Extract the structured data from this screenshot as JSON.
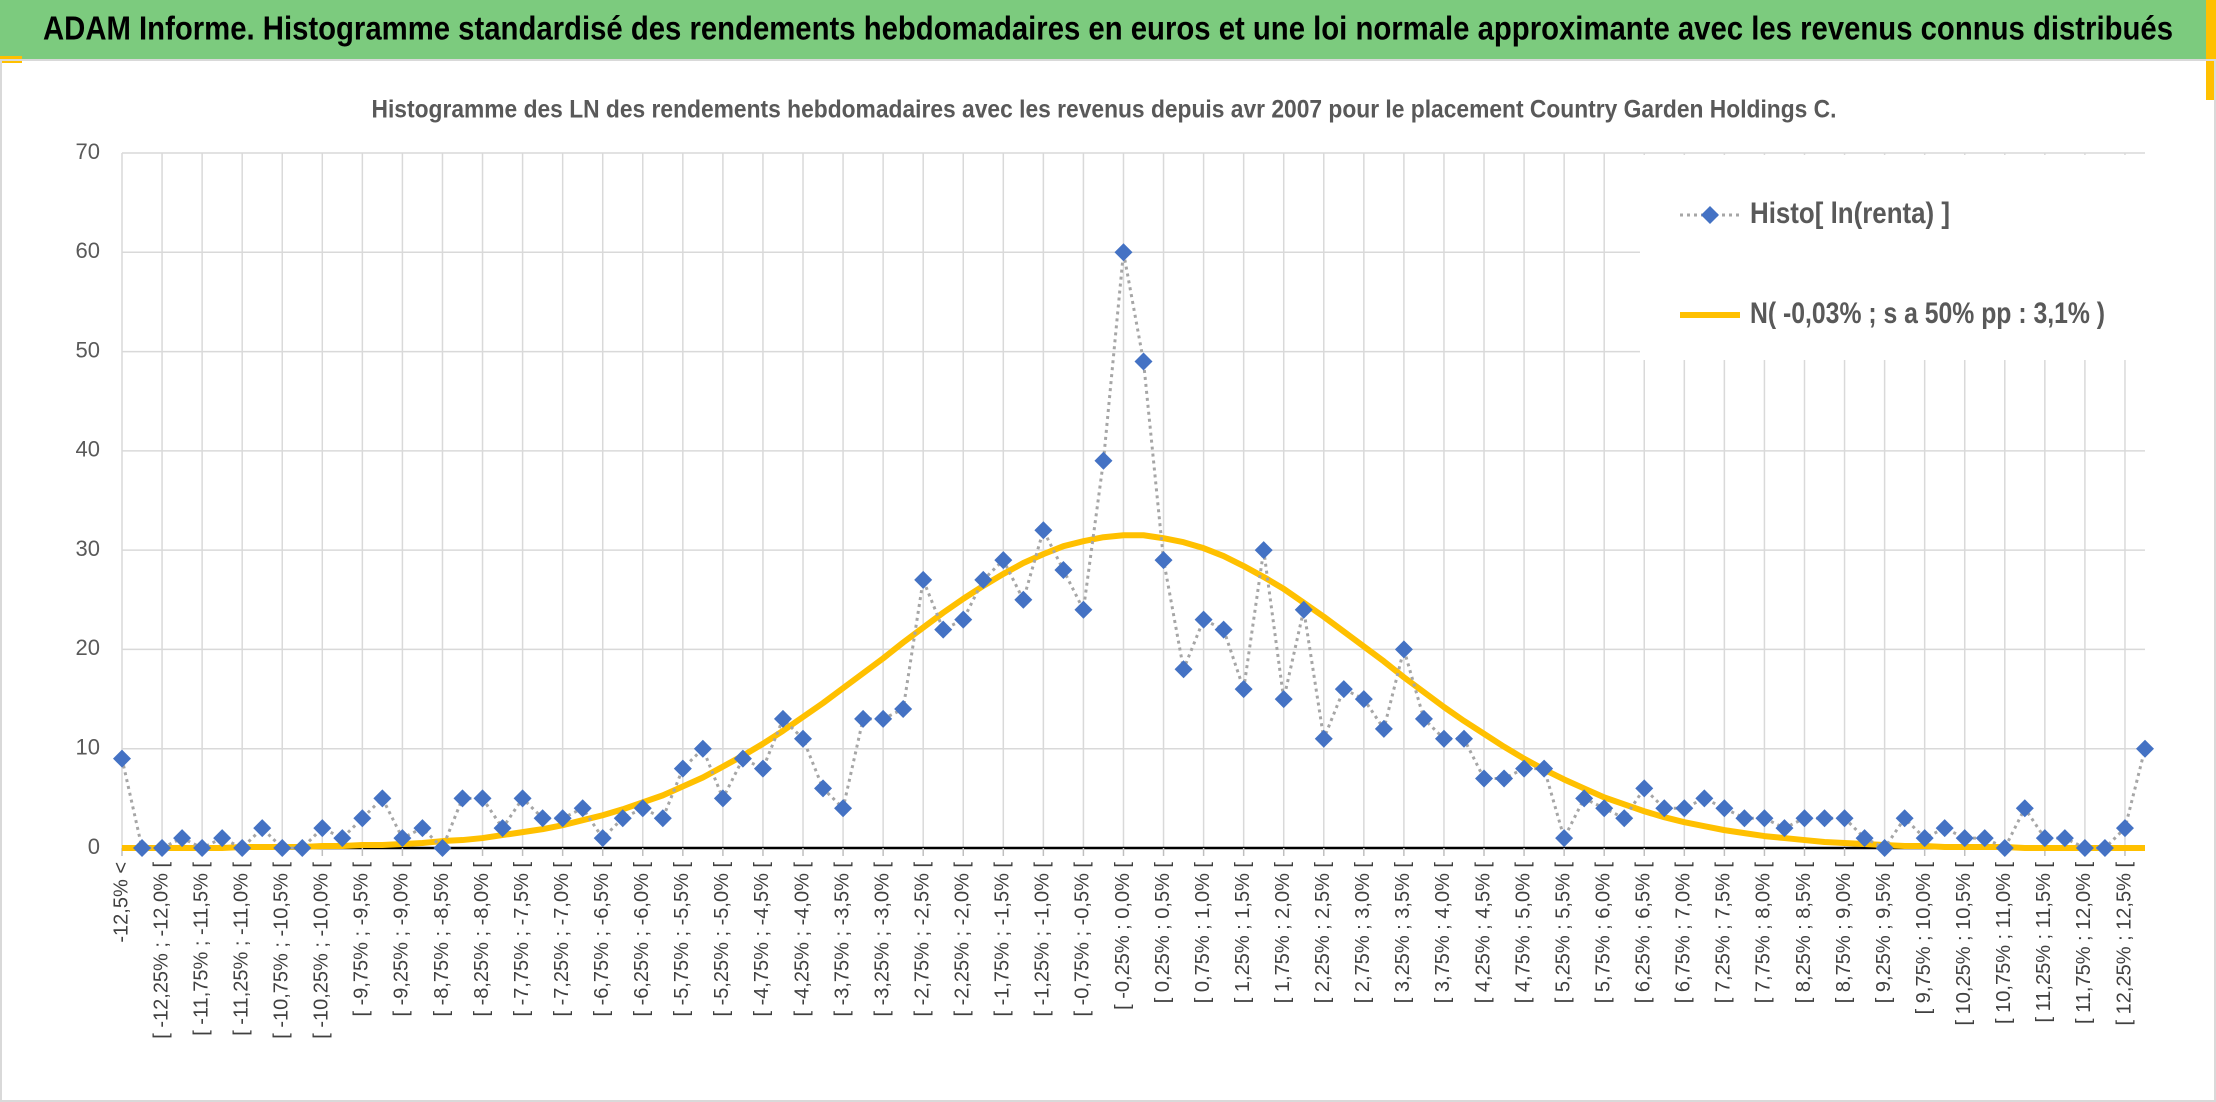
{
  "header": {
    "title": "ADAM Informe. Histogramme standardisé des rendements hebdomadaires en euros et une loi normale approximante avec les revenus connus distribués"
  },
  "chart_data": {
    "type": "line",
    "title": "Histogramme des LN des rendements hebdomadaires avec les revenus depuis avr 2007 pour le placement Country Garden Holdings C.",
    "categories": [
      "-12,5% <",
      null,
      "[ -12,25% ; -12,0% [",
      null,
      "[ -11,75% ; -11,5% [",
      null,
      "[ -11,25% ; -11,0% [",
      null,
      "[ -10,75% ; -10,5% [",
      null,
      "[ -10,25% ; -10,0% [",
      null,
      "[ -9,75% ; -9,5% [",
      null,
      "[ -9,25% ; -9,0% [",
      null,
      "[ -8,75% ; -8,5% [",
      null,
      "[ -8,25% ; -8,0% [",
      null,
      "[ -7,75% ; -7,5% [",
      null,
      "[ -7,25% ; -7,0% [",
      null,
      "[ -6,75% ; -6,5% [",
      null,
      "[ -6,25% ; -6,0% [",
      null,
      "[ -5,75% ; -5,5% [",
      null,
      "[ -5,25% ; -5,0% [",
      null,
      "[ -4,75% ; -4,5% [",
      null,
      "[ -4,25% ; -4,0% [",
      null,
      "[ -3,75% ; -3,5% [",
      null,
      "[ -3,25% ; -3,0% [",
      null,
      "[ -2,75% ; -2,5% [",
      null,
      "[ -2,25% ; -2,0% [",
      null,
      "[ -1,75% ; -1,5% [",
      null,
      "[ -1,25% ; -1,0% [",
      null,
      "[ -0,75% ; -0,5% [",
      null,
      "[ -0,25% ; 0,0% [",
      null,
      "[ 0,25% ; 0,5% [",
      null,
      "[ 0,75% ; 1,0% [",
      null,
      "[ 1,25% ; 1,5% [",
      null,
      "[ 1,75% ; 2,0% [",
      null,
      "[ 2,25% ; 2,5% [",
      null,
      "[ 2,75% ; 3,0% [",
      null,
      "[ 3,25% ; 3,5% [",
      null,
      "[ 3,75% ; 4,0% [",
      null,
      "[ 4,25% ; 4,5% [",
      null,
      "[ 4,75% ; 5,0% [",
      null,
      "[ 5,25% ; 5,5% [",
      null,
      "[ 5,75% ; 6,0% [",
      null,
      "[ 6,25% ; 6,5% [",
      null,
      "[ 6,75% ; 7,0% [",
      null,
      "[ 7,25% ; 7,5% [",
      null,
      "[ 7,75% ; 8,0% [",
      null,
      "[ 8,25% ; 8,5% [",
      null,
      "[ 8,75% ; 9,0% [",
      null,
      "[ 9,25% ; 9,5% [",
      null,
      "[ 9,75% ; 10,0% [",
      null,
      "[ 10,25% ; 10,5% [",
      null,
      "[ 10,75% ; 11,0% [",
      null,
      "[ 11,25% ; 11,5% [",
      null,
      "[ 11,75% ; 12,0% [",
      null,
      "[ 12,25% ; 12,5% [",
      null
    ],
    "series": [
      {
        "name": "Histo[ ln(renta) ]",
        "color": "#4472c4",
        "line_color": "#a6a6a6",
        "marker": "diamond",
        "line_style": "dotted",
        "values": [
          9,
          0,
          0,
          1,
          0,
          1,
          0,
          2,
          0,
          0,
          2,
          1,
          3,
          5,
          1,
          2,
          0,
          5,
          5,
          2,
          5,
          3,
          3,
          4,
          1,
          3,
          4,
          3,
          8,
          10,
          5,
          9,
          8,
          13,
          11,
          6,
          4,
          13,
          13,
          14,
          27,
          22,
          23,
          27,
          29,
          25,
          32,
          28,
          24,
          39,
          60,
          49,
          29,
          18,
          23,
          22,
          16,
          30,
          15,
          24,
          11,
          16,
          15,
          12,
          20,
          13,
          11,
          11,
          7,
          7,
          8,
          8,
          1,
          5,
          4,
          3,
          6,
          4,
          4,
          5,
          4,
          3,
          3,
          2,
          3,
          3,
          3,
          1,
          0,
          3,
          1,
          2,
          1,
          1,
          0,
          4,
          1,
          1,
          0,
          0,
          2,
          10
        ]
      },
      {
        "name": "N( -0,03% ; s a 50% pp : 3,1% )",
        "color": "#ffc000",
        "line_style": "solid",
        "values": [
          0.0,
          0.0,
          0.0,
          0.0,
          0.0,
          0.0,
          0.1,
          0.1,
          0.1,
          0.1,
          0.2,
          0.2,
          0.3,
          0.3,
          0.4,
          0.5,
          0.7,
          0.8,
          1.0,
          1.3,
          1.6,
          1.9,
          2.3,
          2.8,
          3.3,
          3.9,
          4.6,
          5.3,
          6.2,
          7.1,
          8.2,
          9.3,
          10.5,
          11.8,
          13.2,
          14.6,
          16.1,
          17.6,
          19.1,
          20.7,
          22.2,
          23.7,
          25.1,
          26.4,
          27.6,
          28.7,
          29.6,
          30.4,
          30.9,
          31.3,
          31.5,
          31.5,
          31.2,
          30.8,
          30.2,
          29.4,
          28.4,
          27.3,
          26.1,
          24.7,
          23.3,
          21.8,
          20.3,
          18.8,
          17.2,
          15.7,
          14.2,
          12.8,
          11.5,
          10.2,
          9.0,
          7.9,
          6.9,
          6.0,
          5.1,
          4.4,
          3.7,
          3.1,
          2.6,
          2.2,
          1.8,
          1.5,
          1.2,
          1.0,
          0.8,
          0.6,
          0.5,
          0.4,
          0.3,
          0.2,
          0.2,
          0.1,
          0.1,
          0.1,
          0.1,
          0.0,
          0.0,
          0.0,
          0.0,
          0.0,
          0.0,
          0.0
        ]
      }
    ],
    "ylim": [
      0,
      70
    ],
    "yticks": [
      0,
      10,
      20,
      30,
      40,
      50,
      60,
      70
    ],
    "grid": true,
    "legend": "upper right"
  }
}
